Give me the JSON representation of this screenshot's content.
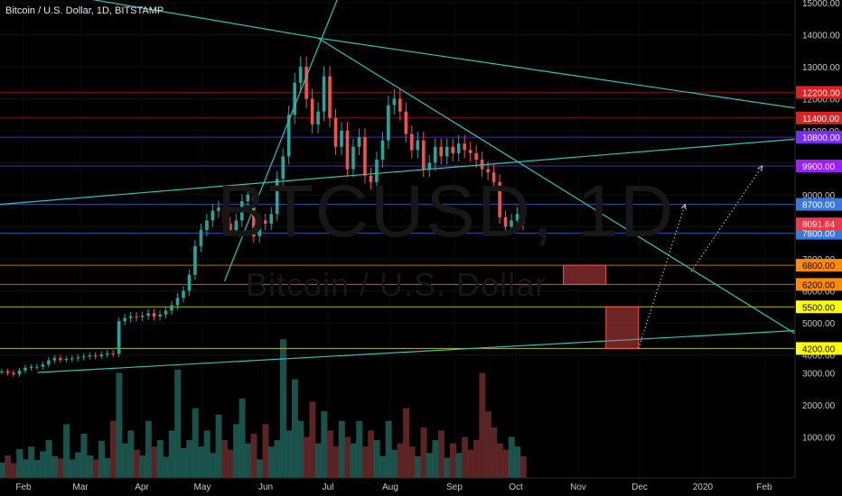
{
  "header": {
    "title": "Bitcoin / U.S. Dollar, 1D, BITSTAMP"
  },
  "watermark": {
    "symbol": "BTCUSD, 1D",
    "name": "Bitcoin / U.S. Dollar"
  },
  "chart_data": {
    "type": "candlestick",
    "x_ticks": [
      "Feb",
      "Mar",
      "Apr",
      "May",
      "Jun",
      "Jul",
      "Aug",
      "Sep",
      "Oct",
      "Nov",
      "Dec",
      "2020",
      "Feb"
    ],
    "price_ticks": [
      15000,
      14000,
      13000,
      12000,
      11000,
      10000,
      9000,
      8000,
      7000,
      6000,
      5000,
      4000
    ],
    "price_tick_labels": [
      "15000.00",
      "14000.00",
      "13000.00",
      "12000.00",
      "11000.00",
      "10000.00",
      "9000.00",
      "8000.00",
      "7000.00",
      "6000.00",
      "5000.00",
      "4000.00"
    ],
    "volume_ticks": [
      3000,
      2000,
      1000
    ],
    "volume_tick_labels": [
      "3000.00",
      "2000.00",
      "1000.00"
    ],
    "last_price": {
      "value": 8091.64,
      "label": "8091.64",
      "color": "#f23645"
    },
    "price_levels": [
      {
        "value": 12200,
        "label": "12200.00",
        "line_color": "#7a1010",
        "badge_color": "#e01f1f",
        "text_color": "#ffffff"
      },
      {
        "value": 11400,
        "label": "11400.00",
        "line_color": "#7a1010",
        "badge_color": "#e01f1f",
        "text_color": "#ffffff"
      },
      {
        "value": 10800,
        "label": "10800.00",
        "line_color": "#4a2bb0",
        "badge_color": "#7a2bff",
        "text_color": "#ffffff"
      },
      {
        "value": 9900,
        "label": "9900.00",
        "line_color": "#4a2bb0",
        "badge_color": "#9b1fff",
        "text_color": "#ffffff"
      },
      {
        "value": 8700,
        "label": "8700.00",
        "line_color": "#2b4fa8",
        "badge_color": "#3a78e0",
        "text_color": "#ffffff"
      },
      {
        "value": 7800,
        "label": "7800.00",
        "line_color": "#2b4fa8",
        "badge_color": "#3a78e0",
        "text_color": "#ffffff"
      },
      {
        "value": 6800,
        "label": "6800.00",
        "line_color": "#b86a10",
        "badge_color": "#ff8c00",
        "text_color": "#000000"
      },
      {
        "value": 6200,
        "label": "6200.00",
        "line_color": "#b86a10",
        "badge_color": "#ff8c00",
        "text_color": "#000000"
      },
      {
        "value": 5500,
        "label": "5500.00",
        "line_color": "#b8b810",
        "badge_color": "#ffff00",
        "text_color": "#000000"
      },
      {
        "value": 4200,
        "label": "4200.00",
        "line_color": "#b8b810",
        "badge_color": "#ffff00",
        "text_color": "#000000"
      }
    ],
    "close_series": [
      3480,
      3440,
      3400,
      3510,
      3600,
      3620,
      3630,
      3700,
      3830,
      3900,
      3850,
      3870,
      3890,
      3920,
      3950,
      3980,
      3960,
      4010,
      4050,
      4030,
      5050,
      5150,
      5200,
      5180,
      5220,
      5300,
      5200,
      5260,
      5380,
      5550,
      5780,
      6000,
      6500,
      7400,
      7900,
      8200,
      8500,
      8600,
      8100,
      7900,
      8200,
      8800,
      9000,
      7700,
      8200,
      8100,
      8400,
      9500,
      10200,
      11500,
      12500,
      13000,
      12000,
      11200,
      11600,
      12700,
      11400,
      10500,
      11000,
      9800,
      10500,
      10800,
      9600,
      9400,
      10100,
      10700,
      11800,
      12000,
      11600,
      10900,
      10400,
      10700,
      9800,
      10000,
      10500,
      10200,
      10500,
      10300,
      10600,
      10400,
      10300,
      10100,
      9800,
      9700,
      9400,
      8300,
      8000,
      8200,
      8400,
      8100
    ],
    "volume_series": [
      200,
      420,
      180,
      620,
      300,
      700,
      280,
      550,
      900,
      400,
      330,
      1400,
      300,
      520,
      1100,
      420,
      300,
      880,
      340,
      1500,
      3000,
      800,
      1200,
      600,
      420,
      1500,
      700,
      900,
      380,
      1200,
      3100,
      650,
      900,
      1900,
      700,
      1200,
      500,
      1700,
      900,
      600,
      1400,
      2200,
      800,
      1100,
      300,
      1400,
      700,
      900,
      4050,
      1200,
      2800,
      1500,
      1000,
      2100,
      800,
      1800,
      1200,
      700,
      1500,
      1000,
      800,
      1500,
      700,
      1200,
      900,
      400,
      1500,
      600,
      800,
      1900,
      700,
      400,
      1300,
      500,
      900,
      1200,
      350,
      800,
      500,
      1000,
      600,
      900,
      3000,
      1800,
      1300,
      800,
      600,
      1000,
      700,
      400
    ],
    "trend_lines": [
      {
        "from": [
          "2019-01-01",
          15800
        ],
        "to": [
          "2019-06-26",
          13900
        ]
      },
      {
        "from": [
          "2019-06-26",
          13900
        ],
        "to": [
          "2020-02-28",
          11600
        ]
      },
      {
        "from": [
          "2019-06-26",
          13900
        ],
        "to": [
          "2020-02-28",
          4200
        ]
      },
      {
        "from": [
          "2019-02-08",
          3450
        ],
        "to": [
          "2020-02-28",
          4800
        ]
      },
      {
        "from": [
          "2019-01-01",
          8600
        ],
        "to": [
          "2020-02-28",
          10800
        ]
      },
      {
        "from": [
          "2019-05-11",
          6300
        ],
        "to": [
          "2019-07-10",
          15800
        ]
      }
    ],
    "boxes": [
      {
        "from": [
          "2019-10-25",
          6800
        ],
        "to": [
          "2019-11-15",
          6200
        ]
      },
      {
        "from": [
          "2019-11-15",
          5500
        ],
        "to": [
          "2019-12-01",
          4200
        ]
      }
    ],
    "projection_arrows": [
      {
        "from": [
          "2019-12-01",
          4200
        ],
        "to": [
          "2019-12-24",
          8700
        ]
      },
      {
        "from": [
          "2019-12-27",
          6600
        ],
        "to": [
          "2020-01-31",
          9900
        ]
      }
    ]
  }
}
